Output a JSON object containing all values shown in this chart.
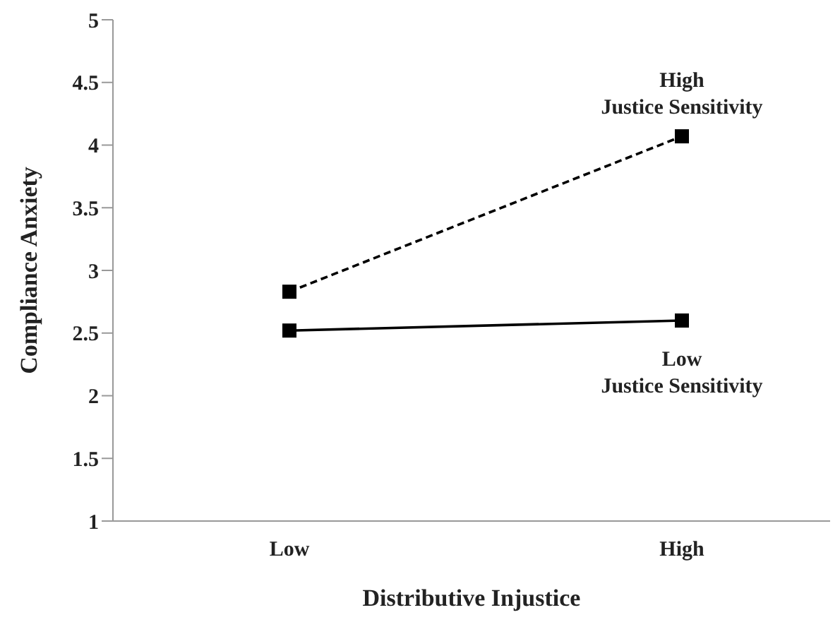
{
  "chart_data": {
    "type": "line",
    "xlabel": "Distributive Injustice",
    "ylabel": "Compliance Anxiety",
    "categories": [
      "Low",
      "High"
    ],
    "ylim": [
      1,
      5
    ],
    "yticks": [
      1,
      1.5,
      2,
      2.5,
      3,
      3.5,
      4,
      4.5,
      5
    ],
    "legend": false,
    "marker": "square",
    "series": [
      {
        "name": "High\nJustice Sensitivity",
        "color": "#000000",
        "values": [
          2.83,
          4.07
        ],
        "line_style": "dashed"
      },
      {
        "name": "Low\nJustice Sensitivity",
        "color": "#000000",
        "values": [
          2.52,
          2.6
        ],
        "line_style": "solid"
      }
    ]
  }
}
